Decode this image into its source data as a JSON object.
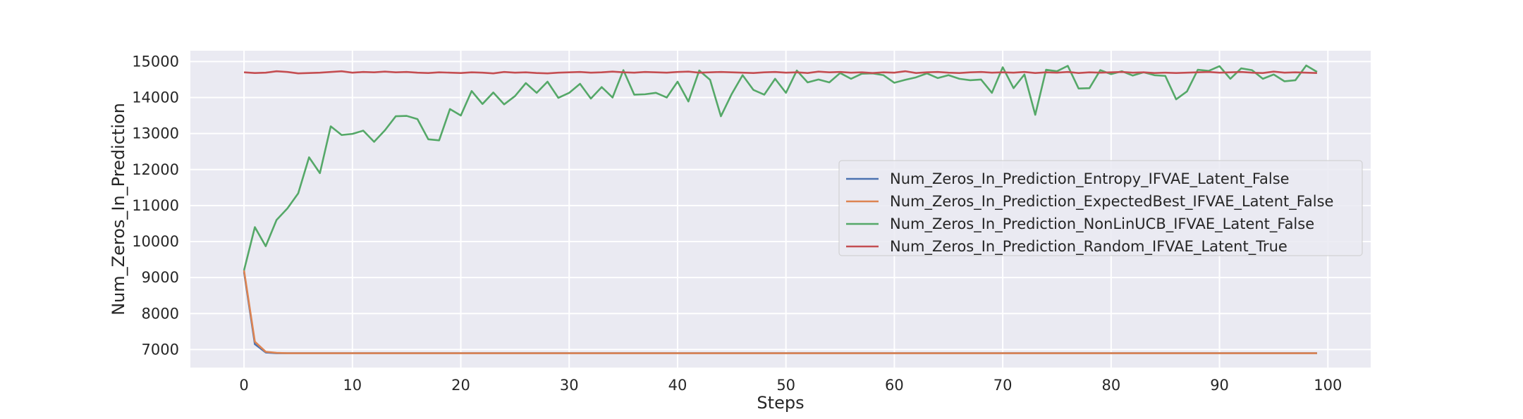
{
  "chart_data": {
    "type": "line",
    "xlabel": "Steps",
    "ylabel": "Num_Zeros_In_Prediction",
    "xlim": [
      -4.95,
      103.95
    ],
    "ylim": [
      6500,
      15300
    ],
    "x_ticks": [
      0,
      10,
      20,
      30,
      40,
      50,
      60,
      70,
      80,
      90,
      100
    ],
    "y_ticks": [
      7000,
      8000,
      9000,
      10000,
      11000,
      12000,
      13000,
      14000,
      15000
    ],
    "grid": true,
    "legend_position": "center-right",
    "x": [
      0,
      1,
      2,
      3,
      4,
      5,
      6,
      7,
      8,
      9,
      10,
      11,
      12,
      13,
      14,
      15,
      16,
      17,
      18,
      19,
      20,
      21,
      22,
      23,
      24,
      25,
      26,
      27,
      28,
      29,
      30,
      31,
      32,
      33,
      34,
      35,
      36,
      37,
      38,
      39,
      40,
      41,
      42,
      43,
      44,
      45,
      46,
      47,
      48,
      49,
      50,
      51,
      52,
      53,
      54,
      55,
      56,
      57,
      58,
      59,
      60,
      61,
      62,
      63,
      64,
      65,
      66,
      67,
      68,
      69,
      70,
      71,
      72,
      73,
      74,
      75,
      76,
      77,
      78,
      79,
      80,
      81,
      82,
      83,
      84,
      85,
      86,
      87,
      88,
      89,
      90,
      91,
      92,
      93,
      94,
      95,
      96,
      97,
      98,
      99
    ],
    "series": [
      {
        "name": "Num_Zeros_In_Prediction_Entropy_IFVAE_Latent_False",
        "color": "#4c72b0",
        "values": [
          9150,
          7150,
          6920,
          6900,
          6900,
          6900,
          6900,
          6900,
          6900,
          6900,
          6900,
          6900,
          6900,
          6900,
          6900,
          6900,
          6900,
          6900,
          6900,
          6900,
          6900,
          6900,
          6900,
          6900,
          6900,
          6900,
          6900,
          6900,
          6900,
          6900,
          6900,
          6900,
          6900,
          6900,
          6900,
          6900,
          6900,
          6900,
          6900,
          6900,
          6900,
          6900,
          6900,
          6900,
          6900,
          6900,
          6900,
          6900,
          6900,
          6900,
          6900,
          6900,
          6900,
          6900,
          6900,
          6900,
          6900,
          6900,
          6900,
          6900,
          6900,
          6900,
          6900,
          6900,
          6900,
          6900,
          6900,
          6900,
          6900,
          6900,
          6900,
          6900,
          6900,
          6900,
          6900,
          6900,
          6900,
          6900,
          6900,
          6900,
          6900,
          6900,
          6900,
          6900,
          6900,
          6900,
          6900,
          6900,
          6900,
          6900,
          6900,
          6900,
          6900,
          6900,
          6900,
          6900,
          6900,
          6900,
          6900,
          6900
        ]
      },
      {
        "name": "Num_Zeros_In_Prediction_ExpectedBest_IFVAE_Latent_False",
        "color": "#dd8452",
        "values": [
          9200,
          7220,
          6940,
          6910,
          6900,
          6900,
          6900,
          6900,
          6900,
          6900,
          6900,
          6900,
          6900,
          6900,
          6900,
          6900,
          6900,
          6900,
          6900,
          6900,
          6900,
          6900,
          6900,
          6900,
          6900,
          6900,
          6900,
          6900,
          6900,
          6900,
          6900,
          6900,
          6900,
          6900,
          6900,
          6900,
          6900,
          6900,
          6900,
          6900,
          6900,
          6900,
          6900,
          6900,
          6900,
          6900,
          6900,
          6900,
          6900,
          6900,
          6900,
          6900,
          6900,
          6900,
          6900,
          6900,
          6900,
          6900,
          6900,
          6900,
          6900,
          6900,
          6900,
          6900,
          6900,
          6900,
          6900,
          6900,
          6900,
          6900,
          6900,
          6900,
          6900,
          6900,
          6900,
          6900,
          6900,
          6900,
          6900,
          6900,
          6900,
          6900,
          6900,
          6900,
          6900,
          6900,
          6900,
          6900,
          6900,
          6900,
          6900,
          6900,
          6900,
          6900,
          6900,
          6900,
          6900,
          6900,
          6900,
          6900
        ]
      },
      {
        "name": "Num_Zeros_In_Prediction_NonLinUCB_IFVAE_Latent_False",
        "color": "#55a868",
        "values": [
          9200,
          10400,
          9870,
          10600,
          10920,
          11340,
          12340,
          11900,
          13200,
          12960,
          12990,
          13080,
          12770,
          13090,
          13480,
          13490,
          13400,
          12840,
          12810,
          13680,
          13500,
          14180,
          13820,
          14140,
          13810,
          14040,
          14400,
          14130,
          14440,
          13990,
          14130,
          14380,
          13970,
          14290,
          14000,
          14760,
          14080,
          14090,
          14130,
          14000,
          14440,
          13890,
          14750,
          14490,
          13480,
          14100,
          14620,
          14210,
          14080,
          14520,
          14130,
          14750,
          14420,
          14500,
          14420,
          14680,
          14520,
          14660,
          14670,
          14620,
          14410,
          14490,
          14560,
          14670,
          14540,
          14620,
          14520,
          14480,
          14500,
          14130,
          14840,
          14260,
          14640,
          13520,
          14770,
          14730,
          14880,
          14250,
          14260,
          14760,
          14650,
          14730,
          14610,
          14700,
          14620,
          14600,
          13950,
          14170,
          14770,
          14740,
          14870,
          14520,
          14810,
          14760,
          14520,
          14640,
          14450,
          14480,
          14890,
          14710
        ]
      },
      {
        "name": "Num_Zeros_In_Prediction_Random_IFVAE_Latent_True",
        "color": "#c44e52",
        "values": [
          14700,
          14680,
          14690,
          14730,
          14710,
          14670,
          14680,
          14690,
          14710,
          14730,
          14690,
          14710,
          14700,
          14720,
          14700,
          14710,
          14690,
          14680,
          14700,
          14690,
          14680,
          14700,
          14690,
          14670,
          14710,
          14690,
          14700,
          14680,
          14670,
          14690,
          14700,
          14710,
          14690,
          14700,
          14720,
          14700,
          14690,
          14710,
          14700,
          14690,
          14710,
          14720,
          14690,
          14700,
          14710,
          14700,
          14690,
          14680,
          14700,
          14710,
          14690,
          14700,
          14680,
          14720,
          14700,
          14710,
          14690,
          14700,
          14680,
          14700,
          14690,
          14730,
          14680,
          14700,
          14710,
          14690,
          14680,
          14700,
          14710,
          14690,
          14700,
          14690,
          14710,
          14680,
          14700,
          14690,
          14710,
          14680,
          14700,
          14690,
          14700,
          14710,
          14690,
          14700,
          14680,
          14690,
          14680,
          14690,
          14700,
          14710,
          14690,
          14700,
          14710,
          14690,
          14680,
          14720,
          14690,
          14700,
          14690,
          14680
        ]
      }
    ]
  }
}
